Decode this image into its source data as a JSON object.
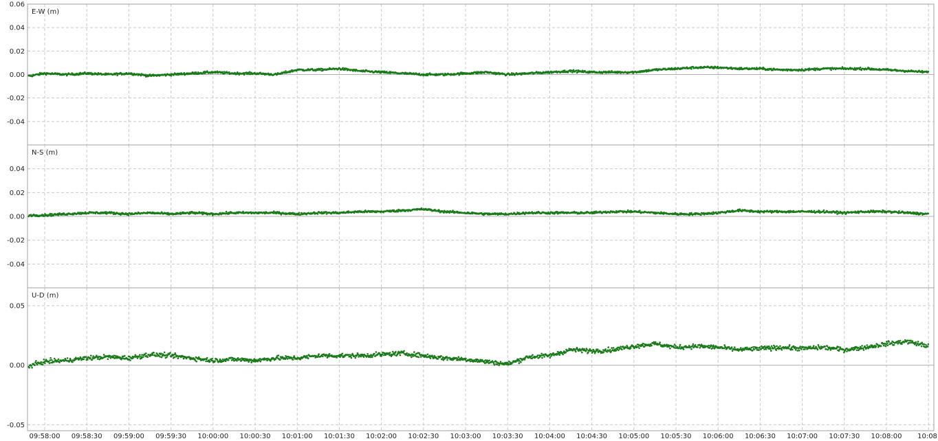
{
  "chart_data": [
    {
      "type": "scatter",
      "label": "E-W (m)",
      "ylim": [
        -0.06,
        0.06
      ],
      "yticks": [
        0.06,
        0.04,
        0.02,
        0.0,
        -0.02,
        -0.04
      ],
      "ytick_labels": [
        "0.06",
        "0.04",
        "0.02",
        "0.00",
        "-0.02",
        "-0.04"
      ],
      "color": "#1a7a1a",
      "series": [
        {
          "x": [
            "09:57:45",
            "09:58:00",
            "09:58:15",
            "09:58:30",
            "09:58:45",
            "09:59:00",
            "09:59:15",
            "09:59:30",
            "09:59:45",
            "10:00:00",
            "10:00:15",
            "10:00:30",
            "10:00:45",
            "10:01:00",
            "10:01:15",
            "10:01:30",
            "10:01:45",
            "10:02:00",
            "10:02:15",
            "10:02:30",
            "10:02:45",
            "10:03:00",
            "10:03:15",
            "10:03:30",
            "10:03:45",
            "10:04:00",
            "10:04:15",
            "10:04:30",
            "10:04:45",
            "10:05:00",
            "10:05:15",
            "10:05:30",
            "10:05:45",
            "10:06:00",
            "10:06:15",
            "10:06:30",
            "10:06:45",
            "10:07:00",
            "10:07:15",
            "10:07:30",
            "10:07:45",
            "10:08:00",
            "10:08:15",
            "10:08:30"
          ],
          "y": [
            -0.002,
            0.001,
            0.0,
            0.001,
            0.0,
            0.001,
            -0.001,
            0.0,
            0.001,
            0.002,
            0.001,
            0.001,
            0.0,
            0.004,
            0.004,
            0.005,
            0.003,
            0.002,
            0.001,
            0.0,
            0.0,
            0.001,
            0.002,
            0.0,
            0.001,
            0.002,
            0.003,
            0.002,
            0.002,
            0.002,
            0.004,
            0.005,
            0.006,
            0.006,
            0.005,
            0.005,
            0.004,
            0.004,
            0.005,
            0.005,
            0.005,
            0.004,
            0.003,
            0.002
          ]
        }
      ]
    },
    {
      "type": "scatter",
      "label": "N-S (m)",
      "ylim": [
        -0.06,
        0.06
      ],
      "yticks": [
        0.04,
        0.02,
        0.0,
        -0.02,
        -0.04
      ],
      "ytick_labels": [
        "0.04",
        "0.02",
        "0.00",
        "-0.02",
        "-0.04"
      ],
      "color": "#1a7a1a",
      "series": [
        {
          "x": [
            "09:57:45",
            "09:58:00",
            "09:58:15",
            "09:58:30",
            "09:58:45",
            "09:59:00",
            "09:59:15",
            "09:59:30",
            "09:59:45",
            "10:00:00",
            "10:00:15",
            "10:00:30",
            "10:00:45",
            "10:01:00",
            "10:01:15",
            "10:01:30",
            "10:01:45",
            "10:02:00",
            "10:02:15",
            "10:02:30",
            "10:02:45",
            "10:03:00",
            "10:03:15",
            "10:03:30",
            "10:03:45",
            "10:04:00",
            "10:04:15",
            "10:04:30",
            "10:04:45",
            "10:05:00",
            "10:05:15",
            "10:05:30",
            "10:05:45",
            "10:06:00",
            "10:06:15",
            "10:06:30",
            "10:06:45",
            "10:07:00",
            "10:07:15",
            "10:07:30",
            "10:07:45",
            "10:08:00",
            "10:08:15",
            "10:08:30"
          ],
          "y": [
            0.001,
            0.001,
            0.002,
            0.003,
            0.003,
            0.002,
            0.003,
            0.002,
            0.003,
            0.002,
            0.003,
            0.003,
            0.003,
            0.002,
            0.003,
            0.003,
            0.004,
            0.004,
            0.005,
            0.006,
            0.004,
            0.003,
            0.002,
            0.002,
            0.003,
            0.003,
            0.003,
            0.003,
            0.004,
            0.004,
            0.003,
            0.002,
            0.002,
            0.003,
            0.005,
            0.004,
            0.004,
            0.004,
            0.004,
            0.003,
            0.004,
            0.004,
            0.003,
            0.002
          ]
        }
      ]
    },
    {
      "type": "scatter",
      "label": "U-D (m)",
      "ylim": [
        -0.055,
        0.065
      ],
      "yticks": [
        0.05,
        0.0,
        -0.05
      ],
      "ytick_labels": [
        "0.05",
        "0.00",
        "-0.05"
      ],
      "color": "#1a7a1a",
      "series": [
        {
          "x": [
            "09:57:45",
            "09:58:00",
            "09:58:15",
            "09:58:30",
            "09:58:45",
            "09:59:00",
            "09:59:15",
            "09:59:30",
            "09:59:45",
            "10:00:00",
            "10:00:15",
            "10:00:30",
            "10:00:45",
            "10:01:00",
            "10:01:15",
            "10:01:30",
            "10:01:45",
            "10:02:00",
            "10:02:15",
            "10:02:30",
            "10:02:45",
            "10:03:00",
            "10:03:15",
            "10:03:30",
            "10:03:45",
            "10:04:00",
            "10:04:15",
            "10:04:30",
            "10:04:45",
            "10:05:00",
            "10:05:15",
            "10:05:30",
            "10:05:45",
            "10:06:00",
            "10:06:15",
            "10:06:30",
            "10:06:45",
            "10:07:00",
            "10:07:15",
            "10:07:30",
            "10:07:45",
            "10:08:00",
            "10:08:15",
            "10:08:30"
          ],
          "y": [
            -0.002,
            0.003,
            0.004,
            0.006,
            0.007,
            0.006,
            0.009,
            0.008,
            0.006,
            0.004,
            0.005,
            0.004,
            0.006,
            0.006,
            0.008,
            0.008,
            0.008,
            0.009,
            0.01,
            0.008,
            0.006,
            0.005,
            0.003,
            0.001,
            0.007,
            0.008,
            0.013,
            0.012,
            0.013,
            0.016,
            0.018,
            0.015,
            0.016,
            0.015,
            0.013,
            0.014,
            0.015,
            0.014,
            0.015,
            0.013,
            0.015,
            0.018,
            0.02,
            0.016
          ]
        }
      ]
    }
  ],
  "x_axis": {
    "tick_labels": [
      "09:58:00",
      "09:58:30",
      "09:59:00",
      "09:59:30",
      "10:00:00",
      "10:00:30",
      "10:01:00",
      "10:01:30",
      "10:02:00",
      "10:02:30",
      "10:03:00",
      "10:03:30",
      "10:04:00",
      "10:04:30",
      "10:05:00",
      "10:05:30",
      "10:06:00",
      "10:06:30",
      "10:07:00",
      "10:07:30",
      "10:08:00",
      "10:08:"
    ]
  },
  "colors": {
    "points": "#1a7a1a",
    "grid": "#c8c8c8",
    "zero_line": "#b0b0b0",
    "panel_border": "#a0a0a0"
  }
}
